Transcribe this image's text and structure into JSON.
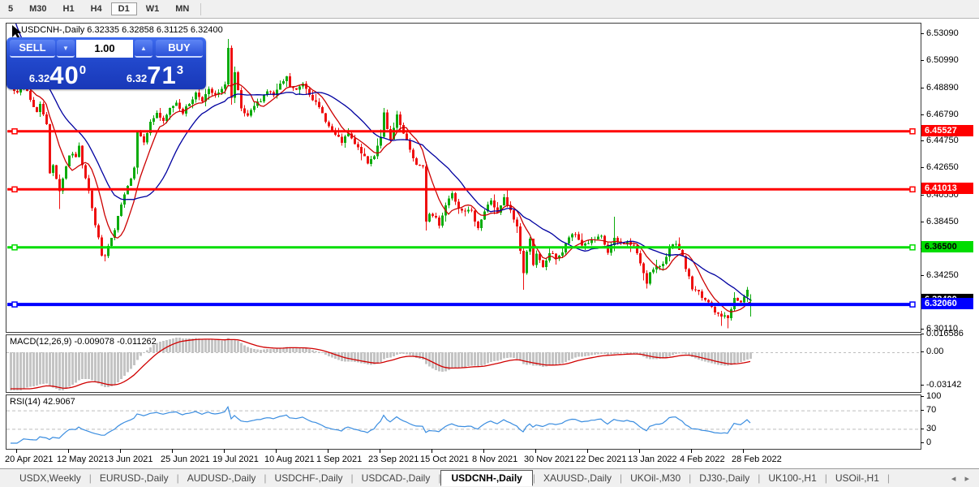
{
  "toolbar": {
    "timeframes": [
      "5",
      "M30",
      "H1",
      "H4",
      "D1",
      "W1",
      "MN"
    ],
    "active": "D1"
  },
  "window": {
    "title": "USDCNH-,Daily  6.32335 6.32858 6.31125 6.32400"
  },
  "trade_panel": {
    "sell_label": "SELL",
    "buy_label": "BUY",
    "volume": "1.00",
    "spinner_down_icon": "▼",
    "spinner_up_icon": "▲",
    "sell_price_small": "6.32",
    "sell_price_big": "40",
    "sell_price_sup": "0",
    "buy_price_small": "6.32",
    "buy_price_big": "71",
    "buy_price_sup": "3"
  },
  "price_axis": {
    "labels": [
      [
        "6.53090",
        6.5309
      ],
      [
        "6.50990",
        6.5099
      ],
      [
        "6.48890",
        6.4889
      ],
      [
        "6.46790",
        6.4679
      ],
      [
        "6.44750",
        6.4475
      ],
      [
        "6.42650",
        6.4265
      ],
      [
        "6.40550",
        6.4055
      ],
      [
        "6.38450",
        6.3845
      ],
      [
        "6.36350",
        6.3635
      ],
      [
        "6.34250",
        6.3425
      ],
      [
        "6.30110",
        6.3011
      ]
    ]
  },
  "levels": [
    {
      "price": 6.45527,
      "label": "6.45527",
      "color": "#ff0000",
      "text_color": "#ffffff",
      "width": 3
    },
    {
      "price": 6.41013,
      "label": "6.41013",
      "color": "#ff0000",
      "text_color": "#ffffff",
      "width": 3
    },
    {
      "price": 6.365,
      "label": "6.36500",
      "color": "#00dd00",
      "text_color": "#000000",
      "width": 3
    },
    {
      "price": 6.3206,
      "label": "6.32060",
      "color": "#0000ff",
      "text_color": "#ffffff",
      "width": 4
    }
  ],
  "current_price": {
    "label": "6.32400",
    "price": 6.324,
    "color": "#000000",
    "text_color": "#ffffff"
  },
  "macd_panel": {
    "label": "MACD(12,26,9) -0.009078 -0.011262",
    "axis_labels": [
      [
        "0.016586",
        0.016586
      ],
      [
        "0.00",
        0
      ],
      [
        "-0.03142",
        -0.03142
      ]
    ]
  },
  "rsi_panel": {
    "label": "RSI(14) 42.9067",
    "axis_labels": [
      [
        "100",
        100
      ],
      [
        "70",
        70
      ],
      [
        "30",
        30
      ],
      [
        "0",
        0
      ]
    ],
    "dashed_levels": [
      70,
      30
    ]
  },
  "x_axis": {
    "labels": [
      "20 Apr 2021",
      "12 May 2021",
      "3 Jun 2021",
      "25 Jun 2021",
      "19 Jul 2021",
      "10 Aug 2021",
      "1 Sep 2021",
      "23 Sep 2021",
      "15 Oct 2021",
      "8 Nov 2021",
      "30 Nov 2021",
      "22 Dec 2021",
      "13 Jan 2022",
      "4 Feb 2022",
      "28 Feb 2022"
    ],
    "label_bars": [
      2,
      18,
      34,
      50,
      66,
      82,
      98,
      114,
      130,
      146,
      162,
      178,
      194,
      210,
      226
    ]
  },
  "tabs": {
    "items": [
      "USDX,Weekly",
      "EURUSD-,Daily",
      "AUDUSD-,Daily",
      "USDCHF-,Daily",
      "USDCAD-,Daily",
      "USDCNH-,Daily",
      "XAUUSD-,Daily",
      "UKOil-,M30",
      "DJ30-,Daily",
      "UK100-,H1",
      "USOil-,H1"
    ],
    "active": "USDCNH-,Daily",
    "nav_left_icon": "◂",
    "nav_right_icon": "▸"
  },
  "chart_data": {
    "type": "candlestick",
    "symbol": "USDCNH-",
    "timeframe": "Daily",
    "current_ohlc": {
      "open": 6.32335,
      "high": 6.32858,
      "low": 6.31125,
      "close": 6.324
    },
    "bars": 229,
    "ylim": [
      6.3011,
      6.5309
    ],
    "anchors": [
      [
        0,
        6.492
      ],
      [
        2,
        6.484
      ],
      [
        4,
        6.494
      ],
      [
        6,
        6.48
      ],
      [
        8,
        6.47
      ],
      [
        9,
        6.476
      ],
      [
        11,
        6.462
      ],
      [
        12,
        6.422
      ],
      [
        13,
        6.429
      ],
      [
        15,
        6.409
      ],
      [
        16,
        6.419
      ],
      [
        18,
        6.437
      ],
      [
        20,
        6.436
      ],
      [
        21,
        6.443
      ],
      [
        22,
        6.43
      ],
      [
        24,
        6.41
      ],
      [
        26,
        6.382
      ],
      [
        27,
        6.372
      ],
      [
        28,
        6.36
      ],
      [
        29,
        6.357
      ],
      [
        30,
        6.366
      ],
      [
        32,
        6.378
      ],
      [
        34,
        6.398
      ],
      [
        36,
        6.412
      ],
      [
        38,
        6.428
      ],
      [
        39,
        6.455
      ],
      [
        41,
        6.448
      ],
      [
        43,
        6.462
      ],
      [
        45,
        6.47
      ],
      [
        47,
        6.462
      ],
      [
        49,
        6.473
      ],
      [
        51,
        6.478
      ],
      [
        53,
        6.47
      ],
      [
        55,
        6.477
      ],
      [
        57,
        6.485
      ],
      [
        59,
        6.48
      ],
      [
        61,
        6.487
      ],
      [
        63,
        6.483
      ],
      [
        65,
        6.487
      ],
      [
        66,
        6.493
      ],
      [
        67,
        6.52
      ],
      [
        68,
        6.481
      ],
      [
        69,
        6.5
      ],
      [
        70,
        6.486
      ],
      [
        71,
        6.472
      ],
      [
        73,
        6.466
      ],
      [
        75,
        6.475
      ],
      [
        77,
        6.48
      ],
      [
        79,
        6.487
      ],
      [
        81,
        6.483
      ],
      [
        83,
        6.491
      ],
      [
        85,
        6.497
      ],
      [
        86,
        6.49
      ],
      [
        88,
        6.487
      ],
      [
        90,
        6.493
      ],
      [
        92,
        6.485
      ],
      [
        94,
        6.477
      ],
      [
        96,
        6.469
      ],
      [
        98,
        6.459
      ],
      [
        100,
        6.452
      ],
      [
        102,
        6.447
      ],
      [
        104,
        6.453
      ],
      [
        106,
        6.445
      ],
      [
        108,
        6.439
      ],
      [
        110,
        6.43
      ],
      [
        112,
        6.437
      ],
      [
        114,
        6.452
      ],
      [
        115,
        6.469
      ],
      [
        116,
        6.456
      ],
      [
        117,
        6.448
      ],
      [
        119,
        6.467
      ],
      [
        121,
        6.453
      ],
      [
        123,
        6.441
      ],
      [
        125,
        6.429
      ],
      [
        127,
        6.427
      ],
      [
        128,
        6.386
      ],
      [
        129,
        6.391
      ],
      [
        131,
        6.388
      ],
      [
        132,
        6.383
      ],
      [
        134,
        6.398
      ],
      [
        136,
        6.408
      ],
      [
        138,
        6.396
      ],
      [
        140,
        6.394
      ],
      [
        142,
        6.392
      ],
      [
        144,
        6.381
      ],
      [
        146,
        6.393
      ],
      [
        148,
        6.402
      ],
      [
        150,
        6.391
      ],
      [
        152,
        6.403
      ],
      [
        154,
        6.393
      ],
      [
        156,
        6.381
      ],
      [
        158,
        6.345
      ],
      [
        159,
        6.361
      ],
      [
        160,
        6.373
      ],
      [
        161,
        6.352
      ],
      [
        162,
        6.359
      ],
      [
        164,
        6.349
      ],
      [
        166,
        6.361
      ],
      [
        168,
        6.357
      ],
      [
        170,
        6.361
      ],
      [
        172,
        6.373
      ],
      [
        174,
        6.375
      ],
      [
        176,
        6.367
      ],
      [
        178,
        6.369
      ],
      [
        180,
        6.371
      ],
      [
        182,
        6.373
      ],
      [
        184,
        6.361
      ],
      [
        186,
        6.371
      ],
      [
        188,
        6.368
      ],
      [
        190,
        6.369
      ],
      [
        192,
        6.366
      ],
      [
        194,
        6.353
      ],
      [
        196,
        6.338
      ],
      [
        197,
        6.345
      ],
      [
        199,
        6.349
      ],
      [
        201,
        6.353
      ],
      [
        203,
        6.365
      ],
      [
        205,
        6.367
      ],
      [
        207,
        6.357
      ],
      [
        209,
        6.341
      ],
      [
        210,
        6.333
      ],
      [
        212,
        6.331
      ],
      [
        213,
        6.325
      ],
      [
        215,
        6.322
      ],
      [
        216,
        6.318
      ],
      [
        217,
        6.314
      ],
      [
        219,
        6.312
      ],
      [
        221,
        6.31
      ],
      [
        222,
        6.318
      ],
      [
        223,
        6.325
      ],
      [
        225,
        6.322
      ],
      [
        227,
        6.331
      ],
      [
        228,
        6.324
      ]
    ],
    "wick_overrides": [
      [
        15,
        "low",
        6.395
      ],
      [
        67,
        "high",
        6.527
      ],
      [
        128,
        "low",
        6.378
      ],
      [
        158,
        "low",
        6.332
      ],
      [
        186,
        "high",
        6.389
      ],
      [
        196,
        "low",
        6.333
      ],
      [
        219,
        "low",
        6.304
      ],
      [
        221,
        "low",
        6.302
      ]
    ],
    "indicators": {
      "ma_fast": {
        "color": "#cc0000",
        "period": 8
      },
      "ma_slow": {
        "color": "#0000a0",
        "period": 21
      },
      "macd": {
        "params": "12,26,9",
        "value": -0.009078,
        "signal": -0.011262,
        "histogram_color": "#c4c4c4",
        "signal_color": "#d00000"
      },
      "rsi": {
        "params": "14",
        "value": 42.9067,
        "line_color": "#3a8de0"
      }
    },
    "colors": {
      "up": "#0cab0c",
      "down": "#ee1111",
      "background": "#ffffff"
    }
  }
}
